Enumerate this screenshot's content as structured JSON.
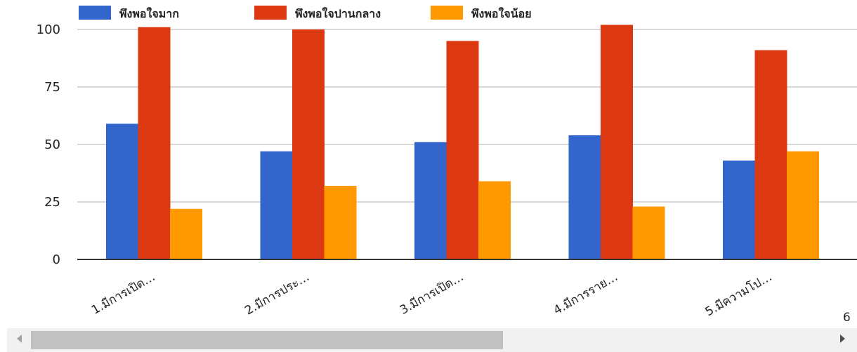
{
  "chart_data": {
    "type": "bar",
    "title": "",
    "xlabel": "",
    "ylabel": "",
    "ylim": [
      0,
      100
    ],
    "yticks": [
      0,
      25,
      50,
      75,
      100
    ],
    "grid": true,
    "legend_position": "top",
    "categories": [
      "1.มีการเปิด…",
      "2.มีการประ…",
      "3.มีการเปิด…",
      "4.มีการราย…",
      "5.มีความโป…"
    ],
    "overflow_category_label": "6",
    "series": [
      {
        "name": "พึงพอใจมาก",
        "color": "#3366cc",
        "values": [
          59,
          47,
          51,
          54,
          43
        ]
      },
      {
        "name": "พึงพอใจปานกลาง",
        "color": "#dc3912",
        "values": [
          101,
          100,
          95,
          102,
          91
        ]
      },
      {
        "name": "พึงพอใจน้อย",
        "color": "#ff9900",
        "values": [
          22,
          32,
          34,
          23,
          47
        ]
      }
    ]
  }
}
